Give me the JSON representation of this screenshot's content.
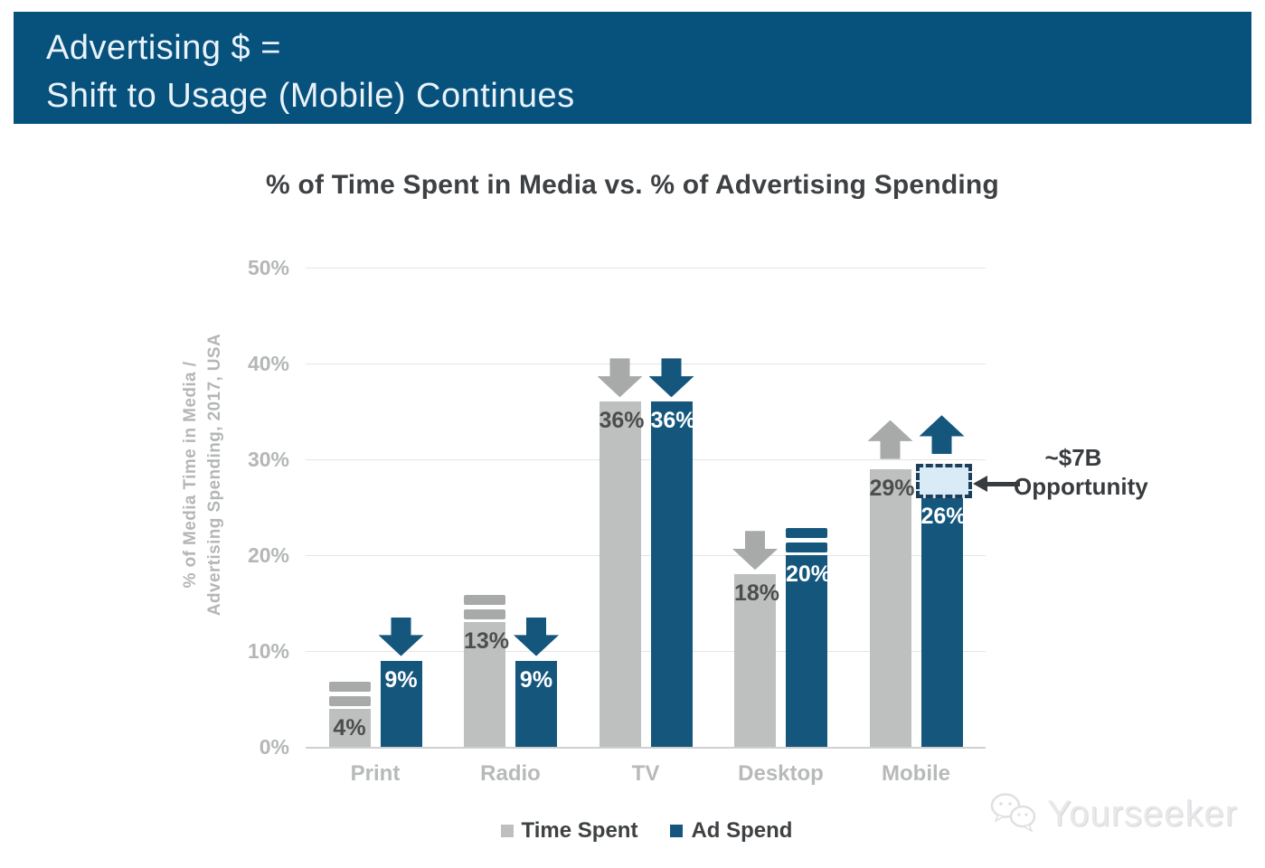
{
  "banner": {
    "line1": "Advertising $ =",
    "line2": "Shift to Usage (Mobile) Continues",
    "background_color": "#07517d"
  },
  "chart_data": {
    "type": "bar",
    "title": "% of Time Spent in Media vs. % of Advertising Spending",
    "ylabel_line1": "% of Media Time in Media /",
    "ylabel_line2": "Advertising Spending, 2017, USA",
    "categories": [
      "Print",
      "Radio",
      "TV",
      "Desktop",
      "Mobile"
    ],
    "series": [
      {
        "name": "Time Spent",
        "color": "#bdc0bf",
        "label_color": "#4b4e4d",
        "marker_color": "#a7aaa9",
        "values": [
          4,
          13,
          36,
          18,
          29
        ],
        "value_labels": [
          "4%",
          "13%",
          "36%",
          "18%",
          "29%"
        ],
        "trends": [
          "equal",
          "equal",
          "down",
          "down",
          "up"
        ]
      },
      {
        "name": "Ad Spend",
        "color": "#15567d",
        "label_color": "#ffffff",
        "marker_color": "#15567d",
        "values": [
          9,
          9,
          36,
          20,
          26
        ],
        "value_labels": [
          "9%",
          "9%",
          "36%",
          "20%",
          "26%"
        ],
        "trends": [
          "down",
          "down",
          "down",
          "equal",
          "up"
        ]
      }
    ],
    "yticks": [
      50,
      40,
      30,
      20,
      10,
      0
    ],
    "ytick_labels": [
      "50%",
      "40%",
      "30%",
      "20%",
      "10%",
      "0%"
    ],
    "ylim": [
      0,
      50
    ],
    "grid": true,
    "legend_position": "bottom",
    "annotation": {
      "line1": "~$7B",
      "line2": "Opportunity",
      "box_category": "Mobile",
      "box_series": "Ad Spend",
      "box_from_pct": 26,
      "box_to_pct": 29.5,
      "box_fill": "#d9ebf7",
      "box_border": "#1d3e58"
    }
  },
  "watermark": {
    "text": "Yourseeker"
  }
}
